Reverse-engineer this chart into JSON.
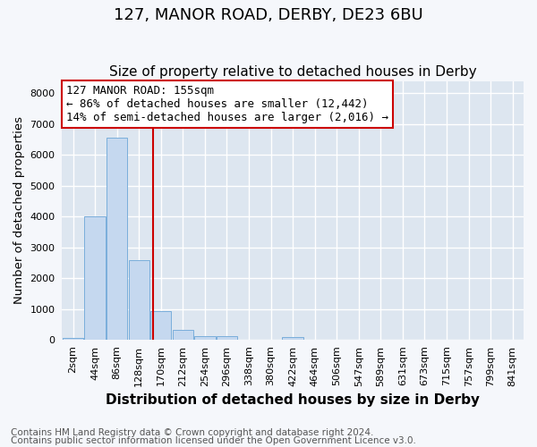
{
  "title": "127, MANOR ROAD, DERBY, DE23 6BU",
  "subtitle": "Size of property relative to detached houses in Derby",
  "xlabel": "Distribution of detached houses by size in Derby",
  "ylabel": "Number of detached properties",
  "footer_line1": "Contains HM Land Registry data © Crown copyright and database right 2024.",
  "footer_line2": "Contains public sector information licensed under the Open Government Licence v3.0.",
  "bin_labels": [
    "2sqm",
    "44sqm",
    "86sqm",
    "128sqm",
    "170sqm",
    "212sqm",
    "254sqm",
    "296sqm",
    "338sqm",
    "380sqm",
    "422sqm",
    "464sqm",
    "506sqm",
    "547sqm",
    "589sqm",
    "631sqm",
    "673sqm",
    "715sqm",
    "757sqm",
    "799sqm",
    "841sqm"
  ],
  "bar_heights": [
    70,
    4000,
    6550,
    2600,
    950,
    330,
    130,
    130,
    0,
    0,
    100,
    0,
    0,
    0,
    0,
    0,
    0,
    0,
    0,
    0,
    0
  ],
  "bar_color": "#c5d8ef",
  "bar_edgecolor": "#7aaedb",
  "fig_color": "#f5f7fb",
  "plot_bg_color": "#dde6f0",
  "grid_color": "#ffffff",
  "vline_color": "#cc0000",
  "vline_x_index": 3.643,
  "annotation_line1": "127 MANOR ROAD: 155sqm",
  "annotation_line2": "← 86% of detached houses are smaller (12,442)",
  "annotation_line3": "14% of semi-detached houses are larger (2,016) →",
  "ann_edgecolor": "#cc0000",
  "ylim": [
    0,
    8400
  ],
  "yticks": [
    0,
    1000,
    2000,
    3000,
    4000,
    5000,
    6000,
    7000,
    8000
  ],
  "title_fontsize": 13,
  "subtitle_fontsize": 11,
  "ylabel_fontsize": 9.5,
  "xlabel_fontsize": 11,
  "tick_fontsize": 8,
  "ann_fontsize": 9,
  "footer_fontsize": 7.5
}
